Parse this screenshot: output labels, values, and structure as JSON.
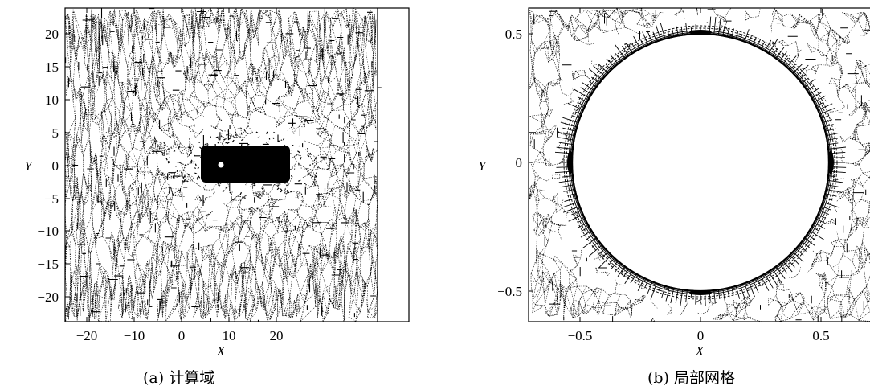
{
  "panels": [
    {
      "id": "a",
      "caption": "(a) 计算域",
      "xlabel": "X",
      "ylabel": "Y",
      "x_ticks": [
        "−20",
        "−10",
        "0",
        "10",
        "20"
      ],
      "y_ticks": [
        "20",
        "15",
        "10",
        "5",
        "0",
        "−5",
        "−10",
        "−15",
        "−20"
      ]
    },
    {
      "id": "b",
      "caption": "(b) 局部网格",
      "xlabel": "X",
      "ylabel": "Y",
      "x_ticks": [
        "−0.5",
        "0",
        "0.5"
      ],
      "y_ticks": [
        "0.5",
        "0",
        "−0.5"
      ]
    }
  ]
}
